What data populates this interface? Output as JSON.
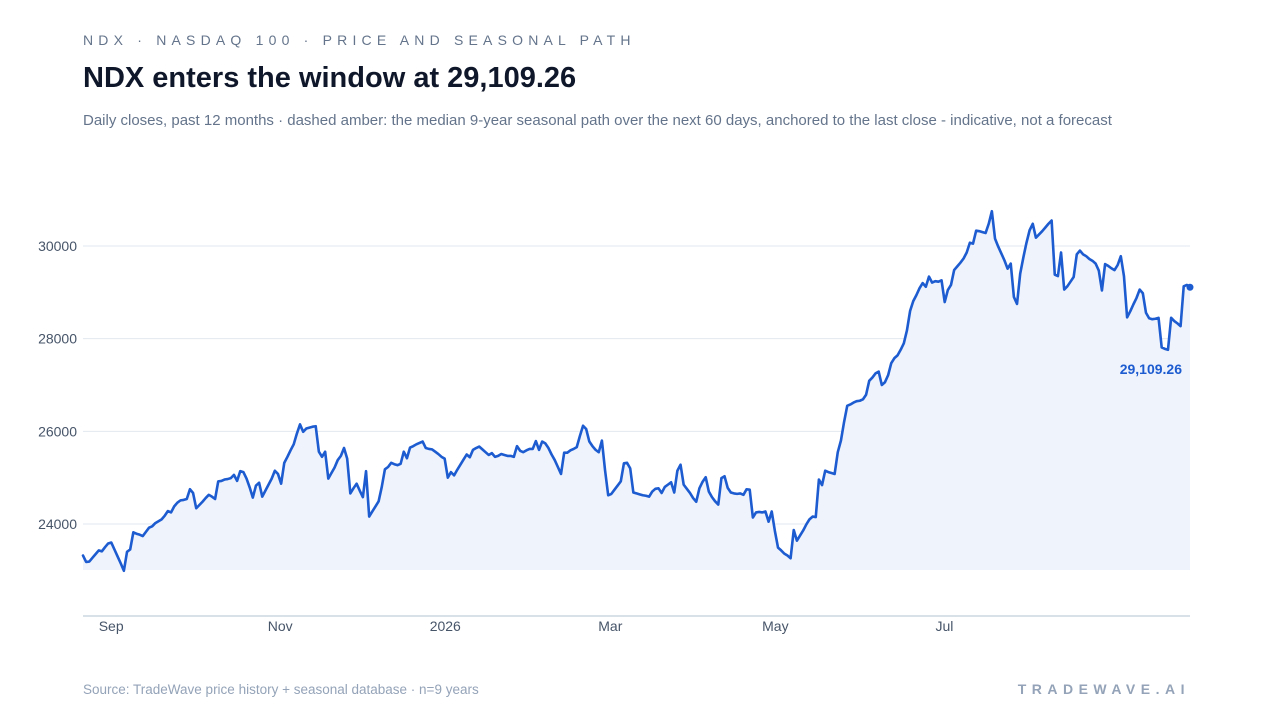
{
  "header": {
    "kicker": "NDX · NASDAQ 100 · PRICE AND SEASONAL PATH",
    "title": "NDX enters the window at 29,109.26",
    "subtitle": "Daily closes, past 12 months · dashed amber: the median 9-year seasonal path over the next 60 days, anchored to the last close - indicative, not a forecast"
  },
  "footer": {
    "source": "Source: TradeWave price history + seasonal database · n=9 years",
    "brand": "TRADEWAVE.AI"
  },
  "colors": {
    "line": "#1d5bd0",
    "area": "#eef3fc",
    "grid": "#e2e8f0",
    "axis": "#cbd5e1"
  },
  "chart_data": {
    "type": "line",
    "title": "NDX enters the window at 29,109.26",
    "xlabel": "",
    "ylabel": "",
    "ylim": [
      22000,
      31500
    ],
    "yticks": [
      24000,
      26000,
      28000,
      30000
    ],
    "ytick_labels": [
      "24000",
      "26000",
      "28000",
      "30000"
    ],
    "xticks": [
      "Sep",
      "Nov",
      "2026",
      "Mar",
      "May",
      "Jul"
    ],
    "xtick_positions": [
      7,
      49,
      90,
      131,
      172,
      214
    ],
    "grid": true,
    "legend": "none",
    "last_value": 29109.26,
    "last_value_label": "29,109.26",
    "series": [
      {
        "values": [
          23320,
          23180,
          23190,
          23270,
          23350,
          23430,
          23410,
          23500,
          23580,
          23600,
          23450,
          23300,
          23150,
          22990,
          23400,
          23450,
          23820,
          23790,
          23770,
          23740,
          23830,
          23920,
          23950,
          24020,
          24060,
          24100,
          24180,
          24280,
          24250,
          24380,
          24460,
          24510,
          24520,
          24540,
          24750,
          24670,
          24340,
          24410,
          24480,
          24560,
          24630,
          24590,
          24540,
          24920,
          24930,
          24960,
          24970,
          24990,
          25060,
          24930,
          25140,
          25120,
          24980,
          24790,
          24570,
          24830,
          24890,
          24590,
          24720,
          24850,
          24980,
          25150,
          25080,
          24870,
          25320,
          25450,
          25590,
          25720,
          25950,
          26150,
          25990,
          26060,
          26080,
          26100,
          26110,
          25560,
          25450,
          25560,
          24980,
          25100,
          25220,
          25380,
          25470,
          25640,
          25410,
          24660,
          24770,
          24870,
          24720,
          24580,
          25140,
          24160,
          24270,
          24380,
          24490,
          24800,
          25180,
          25230,
          25320,
          25290,
          25270,
          25300,
          25560,
          25420,
          25650,
          25680,
          25720,
          25750,
          25780,
          25640,
          25620,
          25610,
          25560,
          25510,
          25450,
          25410,
          25000,
          25120,
          25050,
          25170,
          25280,
          25390,
          25500,
          25440,
          25600,
          25640,
          25670,
          25610,
          25550,
          25490,
          25530,
          25450,
          25470,
          25510,
          25490,
          25470,
          25470,
          25450,
          25680,
          25580,
          25550,
          25590,
          25620,
          25620,
          25790,
          25600,
          25780,
          25740,
          25640,
          25500,
          25380,
          25230,
          25080,
          25540,
          25540,
          25590,
          25620,
          25660,
          25900,
          26120,
          26050,
          25780,
          25680,
          25600,
          25550,
          25800,
          25160,
          24620,
          24650,
          24740,
          24830,
          24920,
          25310,
          25320,
          25200,
          24680,
          24660,
          24640,
          24620,
          24610,
          24590,
          24700,
          24760,
          24770,
          24670,
          24800,
          24850,
          24900,
          24680,
          25150,
          25280,
          24850,
          24760,
          24670,
          24560,
          24480,
          24770,
          24910,
          25010,
          24700,
          24580,
          24490,
          24420,
          24990,
          25030,
          24780,
          24680,
          24660,
          24650,
          24660,
          24630,
          24750,
          24740,
          24140,
          24250,
          24260,
          24250,
          24270,
          24050,
          24270,
          23850,
          23490,
          23430,
          23360,
          23320,
          23260,
          23870,
          23640,
          23750,
          23860,
          23990,
          24100,
          24160,
          24150,
          24960,
          24840,
          25150,
          25120,
          25100,
          25080,
          25550,
          25800,
          26200,
          26550,
          26580,
          26620,
          26650,
          26660,
          26690,
          26790,
          27090,
          27160,
          27250,
          27290,
          27000,
          27060,
          27210,
          27470,
          27580,
          27640,
          27760,
          27900,
          28180,
          28600,
          28810,
          28940,
          29090,
          29200,
          29120,
          29340,
          29210,
          29240,
          29230,
          29260,
          28790,
          29050,
          29160,
          29480,
          29560,
          29640,
          29730,
          29860,
          30070,
          30050,
          30330,
          30320,
          30300,
          30280,
          30480,
          30750,
          30160,
          29990,
          29840,
          29690,
          29510,
          29620,
          28900,
          28750,
          29400,
          29750,
          30070,
          30340,
          30480,
          30180,
          30250,
          30320,
          30400,
          30480,
          30550,
          29380,
          29350,
          29860,
          29060,
          29130,
          29230,
          29330,
          29820,
          29900,
          29820,
          29780,
          29720,
          29680,
          29620,
          29470,
          29040,
          29610,
          29570,
          29520,
          29480,
          29590,
          29780,
          29350,
          28460,
          28590,
          28740,
          28880,
          29060,
          28980,
          28560,
          28440,
          28420,
          28430,
          28450,
          27810,
          27780,
          27760,
          28450,
          28380,
          28330,
          28270,
          29130,
          29160,
          29109.26
        ]
      }
    ]
  }
}
